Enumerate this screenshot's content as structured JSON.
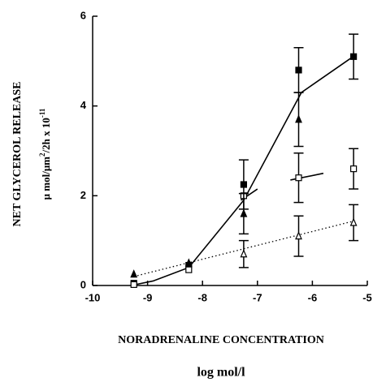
{
  "chart_data": {
    "type": "scatter",
    "y_label": "NET GLYCEROL RELEASE",
    "y_label_units": [
      "μ mol/μm",
      "2",
      "/2h x 10",
      "-11"
    ],
    "x_label": "NORADRENALINE CONCENTRATION",
    "x_label_units": "log mol/l",
    "x": [
      -9.25,
      -8.25,
      -7.25,
      -6.25,
      -5.25
    ],
    "xlim": [
      -10,
      -5
    ],
    "xticks": [
      -10,
      -9,
      -8,
      -7,
      -6,
      -5
    ],
    "ylim": [
      0,
      6
    ],
    "yticks": [
      0,
      2,
      4,
      6
    ],
    "color": "#000000",
    "series": [
      {
        "marker": "filled-square",
        "values": [
          0.05,
          0.45,
          2.25,
          4.8,
          5.1
        ],
        "errors": [
          null,
          null,
          0.55,
          0.5,
          0.5
        ]
      },
      {
        "marker": "open-square",
        "values": [
          0.02,
          0.35,
          2.0,
          2.4,
          2.6
        ],
        "errors": [
          null,
          null,
          null,
          0.55,
          0.45
        ]
      },
      {
        "marker": "filled-triangle",
        "values": [
          0.25,
          0.5,
          1.6,
          3.7,
          null
        ],
        "errors": [
          null,
          null,
          0.45,
          0.6,
          null
        ]
      },
      {
        "marker": "open-triangle",
        "values": [
          null,
          null,
          0.7,
          1.1,
          1.4
        ],
        "errors": [
          null,
          null,
          0.3,
          0.45,
          0.4
        ]
      }
    ],
    "lines": [
      {
        "style": "solid",
        "x": [
          -9.3,
          -8.9,
          -8.25,
          -7.25,
          -6.2,
          -5.2
        ],
        "values": [
          0,
          0.1,
          0.4,
          1.9,
          4.3,
          5.15
        ]
      },
      {
        "style": "solid",
        "x": [
          -7.3,
          -7.0,
          null,
          -6.4,
          -5.8
        ],
        "values": [
          1.9,
          2.15,
          null,
          2.35,
          2.5
        ]
      },
      {
        "style": "dotted",
        "x": [
          -9.25,
          -5.2
        ],
        "values": [
          0.2,
          1.45
        ]
      }
    ]
  }
}
